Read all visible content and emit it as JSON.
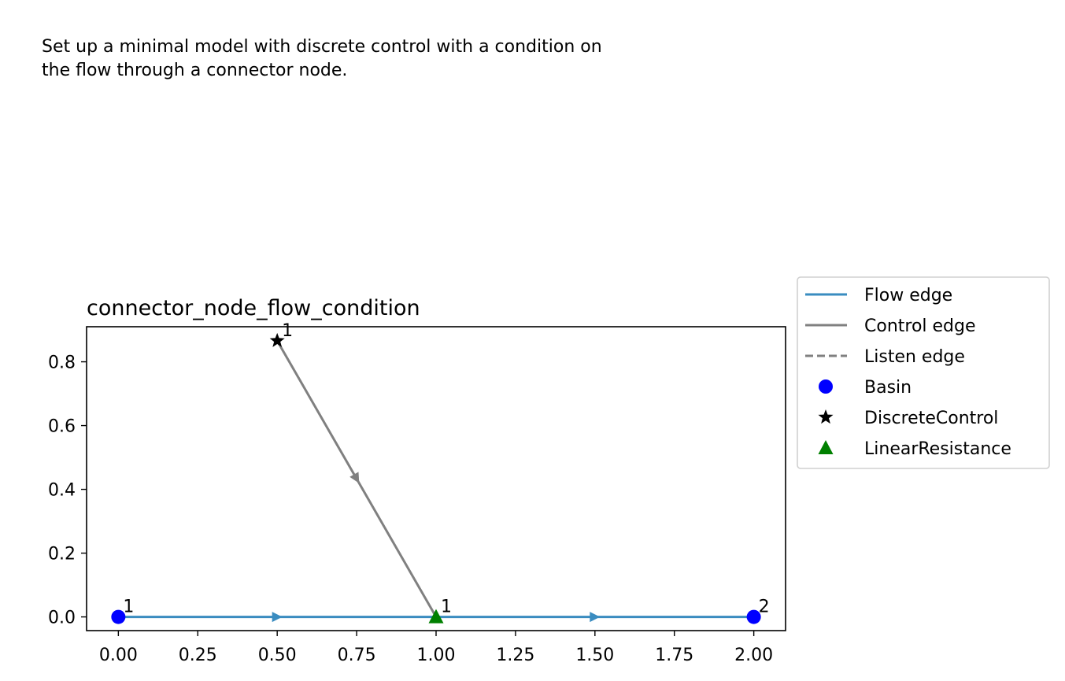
{
  "description": {
    "line1": "Set up a minimal model with discrete control with a condition on",
    "line2": "the flow through a connector node."
  },
  "chart_data": {
    "type": "scatter",
    "title": "connector_node_flow_condition",
    "xlabel": "",
    "ylabel": "",
    "xlim": [
      -0.1,
      2.1
    ],
    "ylim": [
      -0.043,
      0.91
    ],
    "x_ticks": [
      "0.00",
      "0.25",
      "0.50",
      "0.75",
      "1.00",
      "1.25",
      "1.50",
      "1.75",
      "2.00"
    ],
    "y_ticks": [
      "0.0",
      "0.2",
      "0.4",
      "0.6",
      "0.8"
    ],
    "grid": false,
    "nodes": [
      {
        "type": "Basin",
        "id": "1",
        "x": 0.0,
        "y": 0.0
      },
      {
        "type": "Basin",
        "id": "2",
        "x": 2.0,
        "y": 0.0
      },
      {
        "type": "DiscreteControl",
        "id": "1",
        "x": 0.5,
        "y": 0.866
      },
      {
        "type": "LinearResistance",
        "id": "1",
        "x": 1.0,
        "y": 0.0
      }
    ],
    "edges": [
      {
        "kind": "flow",
        "from": [
          0.0,
          0.0
        ],
        "to": [
          1.0,
          0.0
        ]
      },
      {
        "kind": "flow",
        "from": [
          1.0,
          0.0
        ],
        "to": [
          2.0,
          0.0
        ]
      },
      {
        "kind": "control",
        "from": [
          0.5,
          0.866
        ],
        "to": [
          1.0,
          0.0
        ]
      }
    ],
    "legend_position": "outside-right",
    "legend": [
      {
        "label": "Flow edge",
        "kind": "line",
        "color": "#3a8cc0"
      },
      {
        "label": "Control edge",
        "kind": "line",
        "color": "#808080"
      },
      {
        "label": "Listen edge",
        "kind": "dashed",
        "color": "#808080"
      },
      {
        "label": "Basin",
        "kind": "circle",
        "color": "#0000ff"
      },
      {
        "label": "DiscreteControl",
        "kind": "star",
        "color": "#000000"
      },
      {
        "label": "LinearResistance",
        "kind": "triangle",
        "color": "#008000"
      }
    ],
    "colors": {
      "flow": "#3a8cc0",
      "control": "#808080",
      "basin": "#0000ff",
      "discrete_control": "#000000",
      "linear_resistance": "#008000"
    }
  }
}
